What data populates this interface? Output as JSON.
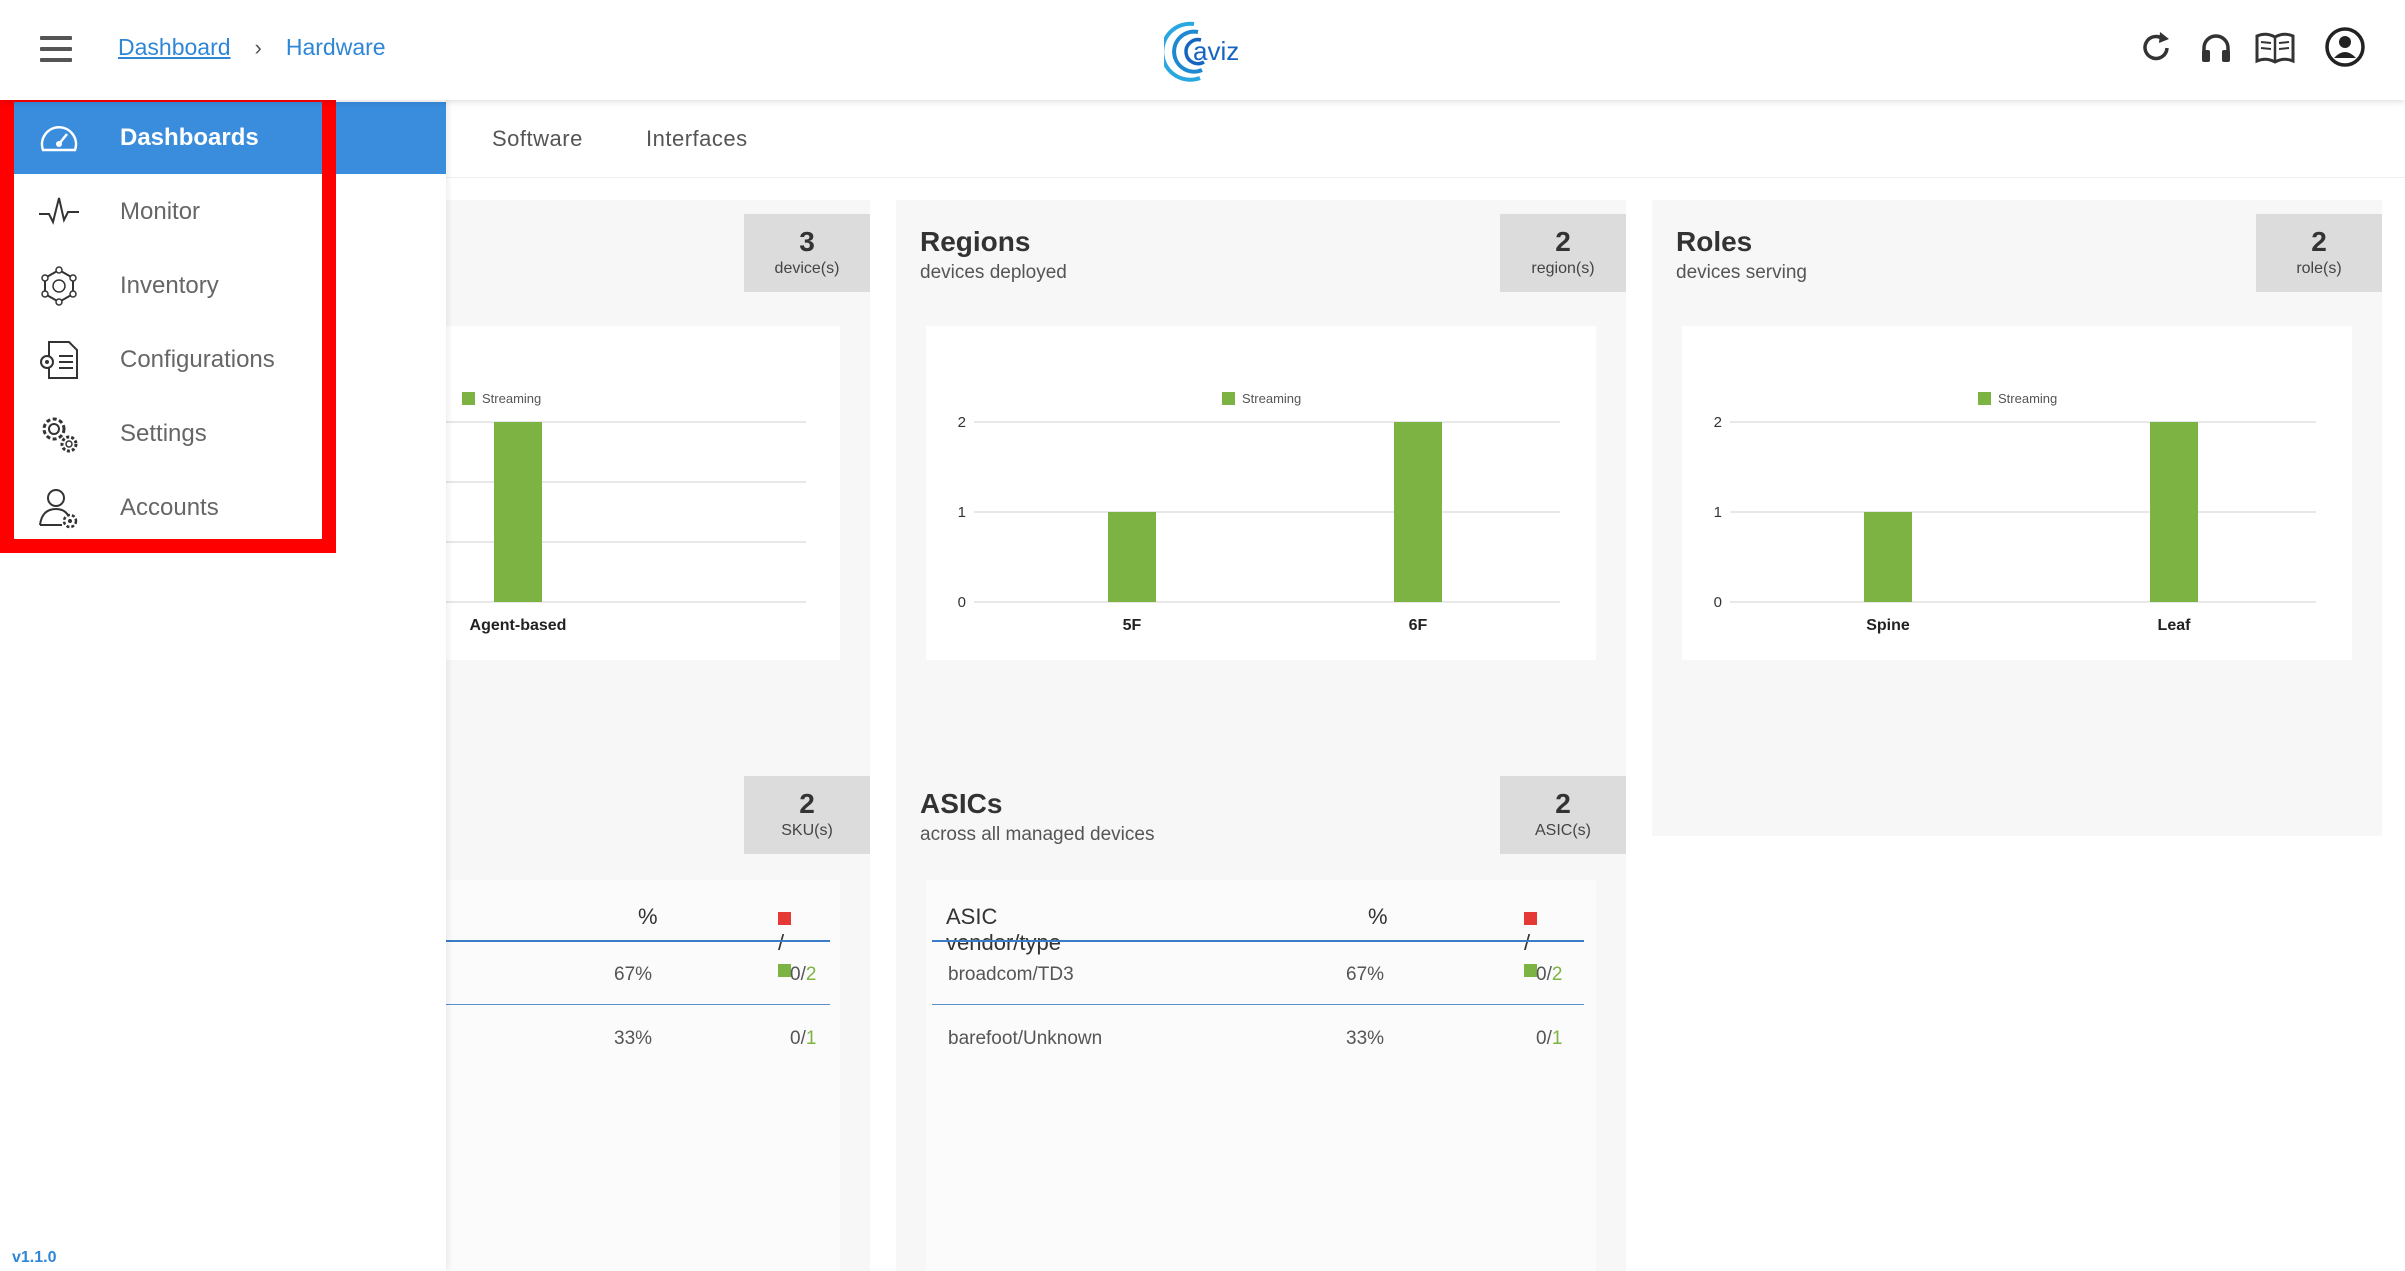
{
  "header": {
    "breadcrumb": [
      "Dashboard",
      "Hardware"
    ],
    "breadcrumb_sep": "›",
    "logo_text": "aviz"
  },
  "sidebar": {
    "items": [
      {
        "label": "Dashboards",
        "icon": "speedometer-icon",
        "active": true
      },
      {
        "label": "Monitor",
        "icon": "pulse-icon"
      },
      {
        "label": "Inventory",
        "icon": "network-cube-icon"
      },
      {
        "label": "Configurations",
        "icon": "config-document-icon"
      },
      {
        "label": "Settings",
        "icon": "gears-icon"
      },
      {
        "label": "Accounts",
        "icon": "user-gear-icon"
      }
    ],
    "version": "v1.1.0"
  },
  "tabs": [
    "Software",
    "Interfaces"
  ],
  "cards": {
    "devices": {
      "count": "3",
      "unit": "device(s)"
    },
    "regions": {
      "title": "Regions",
      "subtitle": "devices deployed",
      "count": "2",
      "unit": "region(s)"
    },
    "roles": {
      "title": "Roles",
      "subtitle": "devices serving",
      "count": "2",
      "unit": "role(s)"
    },
    "skus": {
      "count": "2",
      "unit": "SKU(s)"
    },
    "asics": {
      "title": "ASICs",
      "subtitle": "across all managed devices",
      "count": "2",
      "unit": "ASIC(s)"
    }
  },
  "chart_data": [
    {
      "type": "bar",
      "categories": [
        "Agent-based"
      ],
      "series": [
        {
          "name": "Streaming",
          "values": [
            3
          ]
        }
      ],
      "ylim": [
        0,
        3
      ],
      "color": "#7cb342"
    },
    {
      "type": "bar",
      "categories": [
        "5F",
        "6F"
      ],
      "series": [
        {
          "name": "Streaming",
          "values": [
            1,
            2
          ]
        }
      ],
      "yticks": [
        "0",
        "1",
        "2"
      ],
      "ylim": [
        0,
        2
      ],
      "color": "#7cb342"
    },
    {
      "type": "bar",
      "categories": [
        "Spine",
        "Leaf"
      ],
      "series": [
        {
          "name": "Streaming",
          "values": [
            1,
            2
          ]
        }
      ],
      "yticks": [
        "0",
        "1",
        "2"
      ],
      "ylim": [
        0,
        2
      ],
      "color": "#7cb342"
    }
  ],
  "sku_table": {
    "headers": [
      "%",
      "/"
    ],
    "rows": [
      {
        "pct": "67%",
        "bad": "0",
        "good": "2"
      },
      {
        "pct": "33%",
        "bad": "0",
        "good": "1"
      }
    ]
  },
  "asic_table": {
    "headers": [
      "ASIC vendor/type",
      "%",
      "/"
    ],
    "rows": [
      {
        "name": "broadcom/TD3",
        "pct": "67%",
        "bad": "0",
        "good": "2"
      },
      {
        "name": "barefoot/Unknown",
        "pct": "33%",
        "bad": "0",
        "good": "1"
      }
    ]
  },
  "colors": {
    "accent": "#3a8cdc",
    "bar": "#7cb342",
    "bad": "#e53935",
    "highlight": "#ff0000"
  }
}
